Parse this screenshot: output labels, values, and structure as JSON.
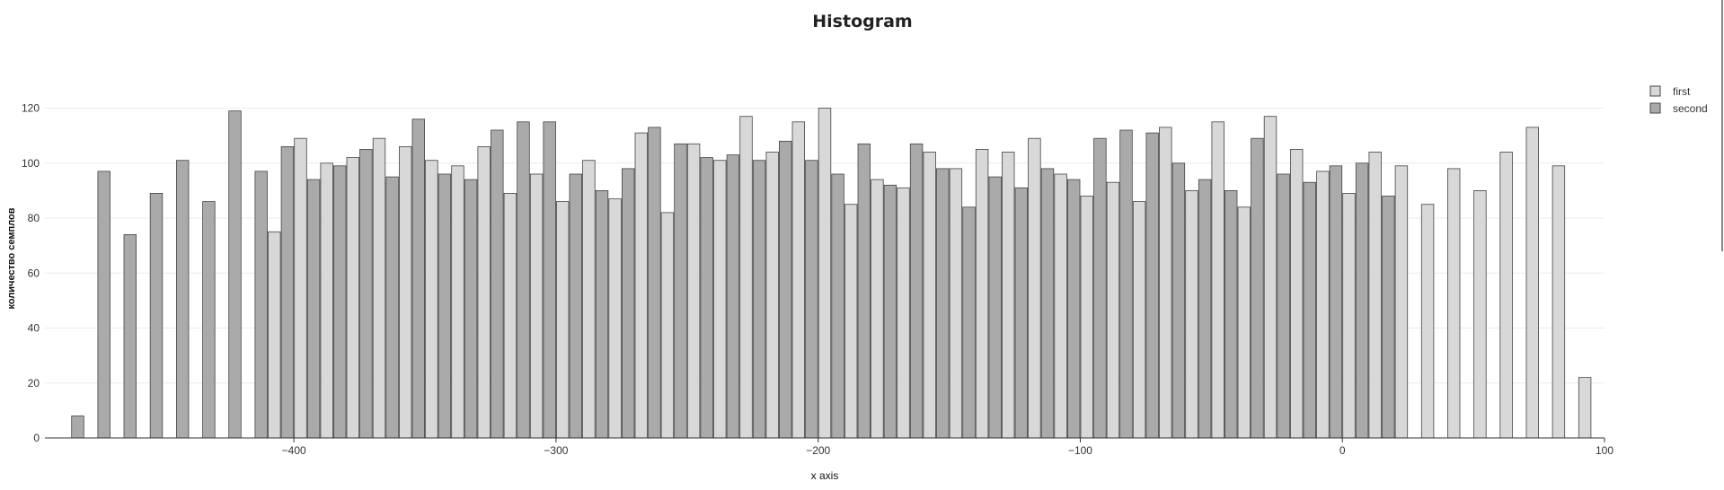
{
  "chart_data": {
    "type": "bar",
    "title": "Histogram",
    "xlabel": "x axis",
    "ylabel": "количество семплов",
    "xlim": [
      -495,
      100
    ],
    "ylim": [
      0,
      128
    ],
    "bin_width": 10,
    "x_ticks": [
      -400,
      -300,
      -200,
      -100,
      0,
      100
    ],
    "y_ticks": [
      0,
      20,
      40,
      60,
      80,
      100,
      120
    ],
    "grid": "horizontal",
    "legend_position": "top-right",
    "series": [
      {
        "name": "first",
        "color": "#d8d8d8",
        "x": [
          -410,
          -400,
          -390,
          -380,
          -370,
          -360,
          -350,
          -340,
          -330,
          -320,
          -310,
          -300,
          -290,
          -280,
          -270,
          -260,
          -250,
          -240,
          -230,
          -220,
          -210,
          -200,
          -190,
          -180,
          -170,
          -160,
          -150,
          -140,
          -130,
          -120,
          -110,
          -100,
          -90,
          -80,
          -70,
          -60,
          -50,
          -40,
          -30,
          -20,
          -10,
          0,
          10,
          20,
          30,
          40,
          50,
          60,
          70,
          80,
          90
        ],
        "values": [
          75,
          109,
          100,
          102,
          109,
          106,
          101,
          99,
          106,
          89,
          96,
          86,
          101,
          87,
          111,
          82,
          107,
          101,
          117,
          104,
          115,
          120,
          85,
          94,
          91,
          104,
          98,
          105,
          104,
          109,
          96,
          88,
          93,
          86,
          113,
          90,
          115,
          84,
          117,
          105,
          97,
          89,
          104,
          99,
          85,
          98,
          90,
          104,
          113,
          99,
          22
        ]
      },
      {
        "name": "second",
        "color": "#aaaaaa",
        "x": [
          -490,
          -480,
          -470,
          -460,
          -450,
          -440,
          -430,
          -420,
          -410,
          -400,
          -390,
          -380,
          -370,
          -360,
          -350,
          -340,
          -330,
          -320,
          -310,
          -300,
          -290,
          -280,
          -270,
          -260,
          -250,
          -240,
          -230,
          -220,
          -210,
          -200,
          -190,
          -180,
          -170,
          -160,
          -150,
          -140,
          -130,
          -120,
          -110,
          -100,
          -90,
          -80,
          -70,
          -60,
          -50,
          -40,
          -30,
          -20,
          -10,
          0,
          10
        ],
        "values": [
          8,
          97,
          74,
          89,
          101,
          86,
          119,
          97,
          106,
          94,
          99,
          105,
          95,
          116,
          96,
          94,
          112,
          115,
          115,
          96,
          90,
          98,
          113,
          107,
          102,
          103,
          101,
          108,
          101,
          96,
          107,
          92,
          107,
          98,
          84,
          95,
          91,
          98,
          94,
          109,
          112,
          111,
          100,
          94,
          90,
          109,
          96,
          93,
          99,
          100,
          88
        ]
      }
    ]
  }
}
